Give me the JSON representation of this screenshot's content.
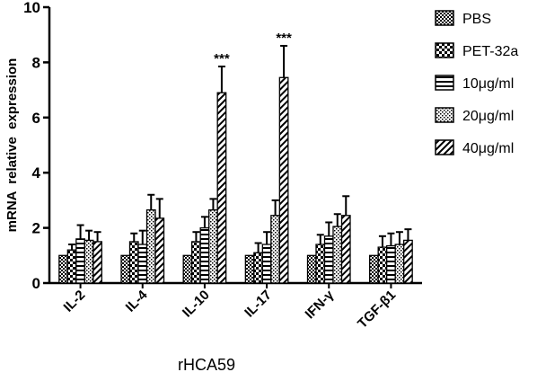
{
  "chart_data": {
    "type": "bar",
    "title": "",
    "xlabel": "rHCA59",
    "ylabel": "mRNA  relative  expression",
    "ylim": [
      0,
      10
    ],
    "yticks": [
      "0",
      "2",
      "4",
      "6",
      "8",
      "10"
    ],
    "categories": [
      "IL-2",
      "IL-4",
      "IL-10",
      "IL-17",
      "IFN-γ",
      "TGF-β1"
    ],
    "series": [
      {
        "name": "PBS",
        "pattern": "checker-small",
        "values": [
          1.0,
          1.0,
          1.0,
          1.0,
          1.0,
          1.0
        ],
        "errors": [
          0,
          0,
          0,
          0,
          0,
          0
        ]
      },
      {
        "name": "PET-32a",
        "pattern": "checker-large",
        "values": [
          1.2,
          1.5,
          1.5,
          1.1,
          1.4,
          1.3
        ],
        "errors": [
          0.2,
          0.3,
          0.35,
          0.35,
          0.35,
          0.4
        ]
      },
      {
        "name": "10μg/ml",
        "pattern": "horizontal",
        "values": [
          1.6,
          1.4,
          2.0,
          1.4,
          1.7,
          1.35
        ],
        "errors": [
          0.5,
          0.5,
          0.4,
          0.45,
          0.5,
          0.45
        ]
      },
      {
        "name": "20μg/ml",
        "pattern": "dots",
        "values": [
          1.55,
          2.65,
          2.65,
          2.45,
          2.05,
          1.4
        ],
        "errors": [
          0.35,
          0.55,
          0.4,
          0.55,
          0.45,
          0.45
        ]
      },
      {
        "name": "40μg/ml",
        "pattern": "diagonal",
        "values": [
          1.5,
          2.35,
          6.9,
          7.45,
          2.45,
          1.55
        ],
        "errors": [
          0.35,
          0.7,
          0.95,
          1.15,
          0.7,
          0.4
        ]
      }
    ],
    "annotations": [
      {
        "category": "IL-10",
        "series": "40μg/ml",
        "text": "***"
      },
      {
        "category": "IL-17",
        "series": "40μg/ml",
        "text": "***"
      }
    ],
    "legend_position": "top-right",
    "grid": false
  }
}
